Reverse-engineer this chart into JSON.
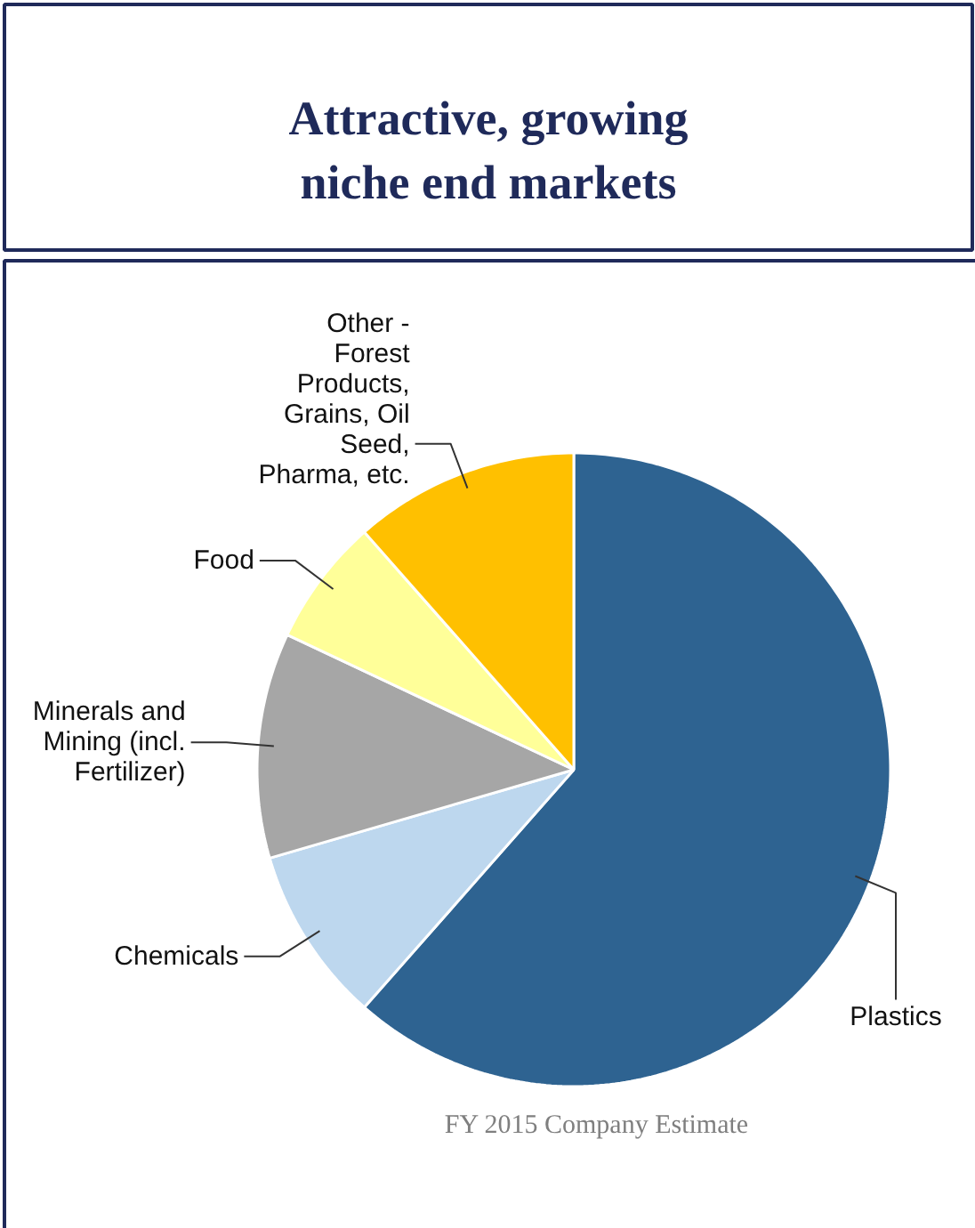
{
  "chart_data": {
    "type": "pie",
    "title": "Attractive, growing niche end markets",
    "categories": [
      "Plastics",
      "Chemicals",
      "Minerals and Mining (incl. Fertilizer)",
      "Food",
      "Other - Forest Products, Grains, Oil Seed, Pharma, etc."
    ],
    "values": [
      61.5,
      9,
      11.5,
      6.5,
      11.5
    ],
    "colors": [
      "#2e6391",
      "#bdd7ee",
      "#a6a6a6",
      "#ffff99",
      "#ffc000"
    ],
    "annotations": [
      "FY 2015 Company Estimate"
    ]
  }
}
